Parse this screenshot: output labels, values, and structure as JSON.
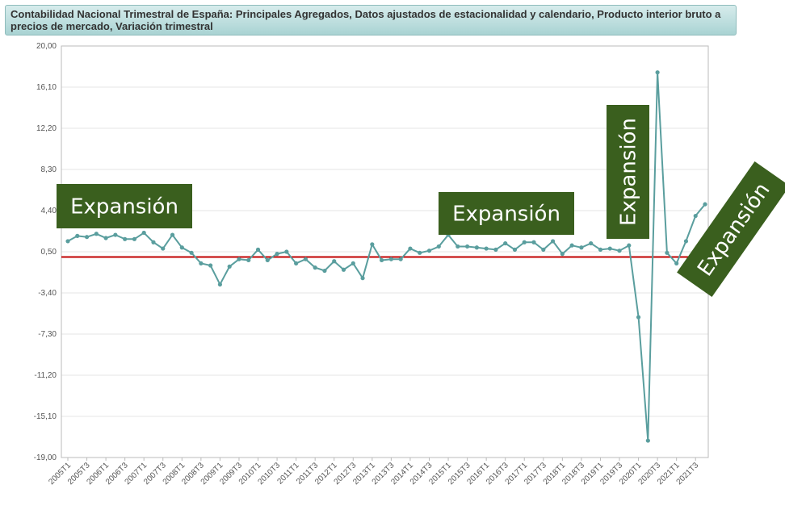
{
  "chart_data": {
    "type": "line",
    "title": "Contabilidad Nacional Trimestral de España: Principales Agregados, Datos ajustados de estacionalidad y calendario, Producto interior bruto a precios de mercado, Variación trimestral",
    "xlabel": "",
    "ylabel": "",
    "ylim": [
      -19.0,
      20.0
    ],
    "yticks": [
      "20,00",
      "16,10",
      "12,20",
      "8,30",
      "4,40",
      "0,50",
      "-3,40",
      "-7,30",
      "-11,20",
      "-15,10",
      "-19,00"
    ],
    "x_tick_labels": [
      "2005T1",
      "2005T3",
      "2006T1",
      "2006T3",
      "2007T1",
      "2007T3",
      "2008T1",
      "2008T3",
      "2009T1",
      "2009T3",
      "2010T1",
      "2010T3",
      "2011T1",
      "2011T3",
      "2012T1",
      "2012T3",
      "2013T1",
      "2013T3",
      "2014T1",
      "2014T3",
      "2015T1",
      "2015T3",
      "2016T1",
      "2016T3",
      "2017T1",
      "2017T3",
      "2018T1",
      "2018T3",
      "2019T1",
      "2019T3",
      "2020T1",
      "2020T3",
      "2021T1",
      "2021T3"
    ],
    "grid": true,
    "reference_line": {
      "y": 0,
      "color": "#c00000"
    },
    "series": [
      {
        "color": "#5a9e9e",
        "values": [
          1.5,
          2.0,
          1.9,
          2.2,
          1.8,
          2.1,
          1.7,
          1.7,
          2.3,
          1.4,
          0.8,
          2.1,
          0.9,
          0.4,
          -0.6,
          -0.8,
          -2.6,
          -0.9,
          -0.2,
          -0.3,
          0.7,
          -0.3,
          0.3,
          0.5,
          -0.6,
          -0.2,
          -1.0,
          -1.3,
          -0.4,
          -1.2,
          -0.6,
          -2.0,
          1.2,
          -0.3,
          -0.2,
          -0.2,
          0.8,
          0.4,
          0.6,
          1.0,
          2.1,
          1.0,
          1.0,
          0.9,
          0.8,
          0.7,
          1.3,
          0.7,
          1.4,
          1.4,
          0.7,
          1.5,
          0.3,
          1.1,
          0.9,
          1.3,
          0.7,
          0.8,
          0.6,
          1.1,
          -5.7,
          -17.4,
          17.5,
          0.4,
          -0.6,
          1.5,
          3.9,
          5.0
        ]
      }
    ]
  },
  "annotations": [
    {
      "text": "Expansión",
      "color": "#3a5f1e"
    },
    {
      "text": "Expansión",
      "color": "#3a5f1e"
    },
    {
      "text": "Expansión",
      "color": "#3a5f1e"
    },
    {
      "text": "Expansión",
      "color": "#3a5f1e"
    }
  ]
}
